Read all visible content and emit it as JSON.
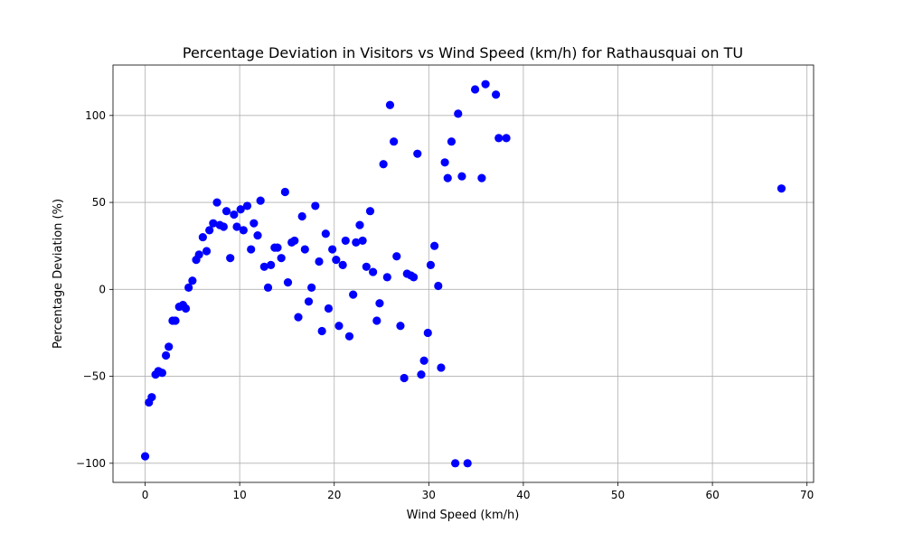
{
  "chart_data": {
    "type": "scatter",
    "title": "Percentage Deviation in Visitors vs Wind Speed (km/h) for Rathausquai on TU",
    "xlabel": "Wind Speed (km/h)",
    "ylabel": "Percentage Deviation (%)",
    "xlim": [
      -3.4,
      70.7
    ],
    "ylim": [
      -111,
      129
    ],
    "xticks": [
      0,
      10,
      20,
      30,
      40,
      50,
      60,
      70
    ],
    "yticks": [
      -100,
      -50,
      0,
      50,
      100
    ],
    "grid": true,
    "marker_color": "#0000ff",
    "points": [
      [
        0.0,
        -96
      ],
      [
        0.4,
        -65
      ],
      [
        0.7,
        -62
      ],
      [
        1.1,
        -49
      ],
      [
        1.4,
        -47
      ],
      [
        1.8,
        -48
      ],
      [
        2.2,
        -38
      ],
      [
        2.5,
        -33
      ],
      [
        2.9,
        -18
      ],
      [
        3.2,
        -18
      ],
      [
        3.6,
        -10
      ],
      [
        4.0,
        -9
      ],
      [
        4.3,
        -11
      ],
      [
        4.6,
        1
      ],
      [
        5.0,
        5
      ],
      [
        5.4,
        17
      ],
      [
        5.7,
        20
      ],
      [
        6.1,
        30
      ],
      [
        6.5,
        22
      ],
      [
        6.8,
        34
      ],
      [
        7.2,
        38
      ],
      [
        7.6,
        50
      ],
      [
        7.9,
        37
      ],
      [
        8.3,
        36
      ],
      [
        8.6,
        45
      ],
      [
        9.0,
        18
      ],
      [
        9.4,
        43
      ],
      [
        9.7,
        36
      ],
      [
        10.1,
        46
      ],
      [
        10.4,
        34
      ],
      [
        10.8,
        48
      ],
      [
        11.2,
        23
      ],
      [
        11.5,
        38
      ],
      [
        11.9,
        31
      ],
      [
        12.2,
        51
      ],
      [
        12.6,
        13
      ],
      [
        13.0,
        1
      ],
      [
        13.3,
        14
      ],
      [
        13.7,
        24
      ],
      [
        14.0,
        24
      ],
      [
        14.4,
        18
      ],
      [
        14.8,
        56
      ],
      [
        15.1,
        4
      ],
      [
        15.5,
        27
      ],
      [
        15.8,
        28
      ],
      [
        16.2,
        -16
      ],
      [
        16.6,
        42
      ],
      [
        16.9,
        23
      ],
      [
        17.3,
        -7
      ],
      [
        17.6,
        1
      ],
      [
        18.0,
        48
      ],
      [
        18.4,
        16
      ],
      [
        18.7,
        -24
      ],
      [
        19.1,
        32
      ],
      [
        19.4,
        -11
      ],
      [
        19.8,
        23
      ],
      [
        20.2,
        17
      ],
      [
        20.5,
        -21
      ],
      [
        20.9,
        14
      ],
      [
        21.2,
        28
      ],
      [
        21.6,
        -27
      ],
      [
        22.0,
        -3
      ],
      [
        22.3,
        27
      ],
      [
        22.7,
        37
      ],
      [
        23.0,
        28
      ],
      [
        23.4,
        13
      ],
      [
        23.8,
        45
      ],
      [
        24.1,
        10
      ],
      [
        24.5,
        -18
      ],
      [
        24.8,
        -8
      ],
      [
        25.2,
        72
      ],
      [
        25.6,
        7
      ],
      [
        25.9,
        106
      ],
      [
        26.3,
        85
      ],
      [
        26.6,
        19
      ],
      [
        27.0,
        -21
      ],
      [
        27.4,
        -51
      ],
      [
        27.7,
        9
      ],
      [
        28.1,
        8
      ],
      [
        28.4,
        7
      ],
      [
        28.8,
        78
      ],
      [
        29.2,
        -49
      ],
      [
        29.5,
        -41
      ],
      [
        29.9,
        -25
      ],
      [
        30.2,
        14
      ],
      [
        30.6,
        25
      ],
      [
        31.0,
        2
      ],
      [
        31.3,
        -45
      ],
      [
        31.7,
        73
      ],
      [
        32.0,
        64
      ],
      [
        32.4,
        85
      ],
      [
        32.8,
        -100
      ],
      [
        33.1,
        101
      ],
      [
        33.5,
        65
      ],
      [
        34.1,
        -100
      ],
      [
        34.9,
        115
      ],
      [
        35.6,
        64
      ],
      [
        36.0,
        118
      ],
      [
        37.1,
        112
      ],
      [
        37.4,
        87
      ],
      [
        38.2,
        87
      ],
      [
        67.3,
        58
      ]
    ]
  }
}
